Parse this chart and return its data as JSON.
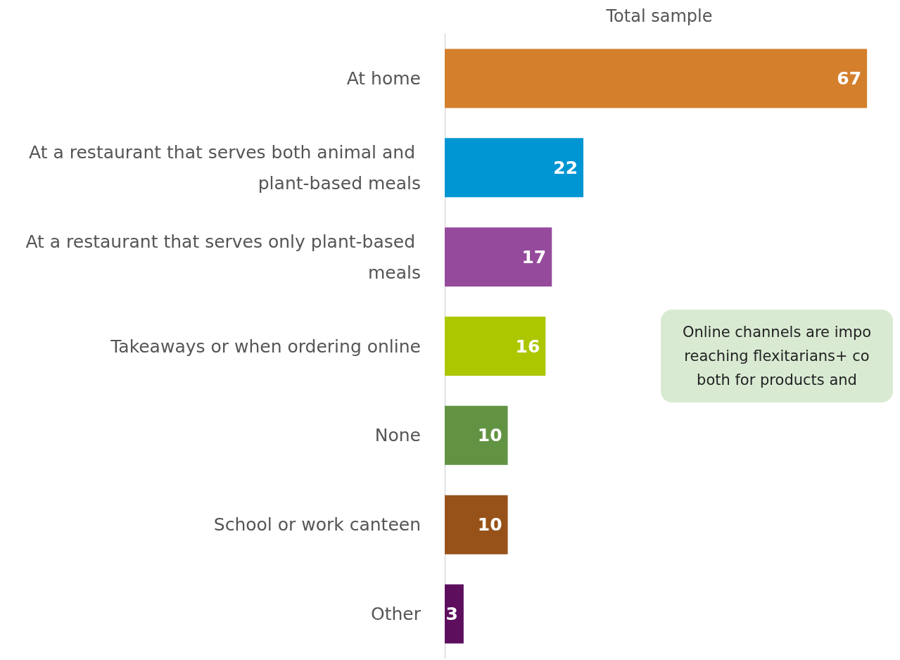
{
  "chart_data": {
    "type": "bar",
    "orientation": "horizontal",
    "title": "Total sample",
    "categories": [
      "At home",
      "At a restaurant that serves both animal and plant-based meals",
      "At a restaurant that serves only plant-based meals",
      "Takeaways or when ordering online",
      "None",
      "School or work canteen",
      "Other"
    ],
    "values": [
      67,
      22,
      17,
      16,
      10,
      10,
      3
    ],
    "colors": [
      "#d47f2c",
      "#0095d3",
      "#954a9c",
      "#acc700",
      "#629342",
      "#975219",
      "#5d0f5e"
    ],
    "data_labels": true,
    "annotations": [
      "Online channels are impo\nreaching flexitarians+ co\nboth for products and"
    ],
    "tick_labels": "y"
  }
}
